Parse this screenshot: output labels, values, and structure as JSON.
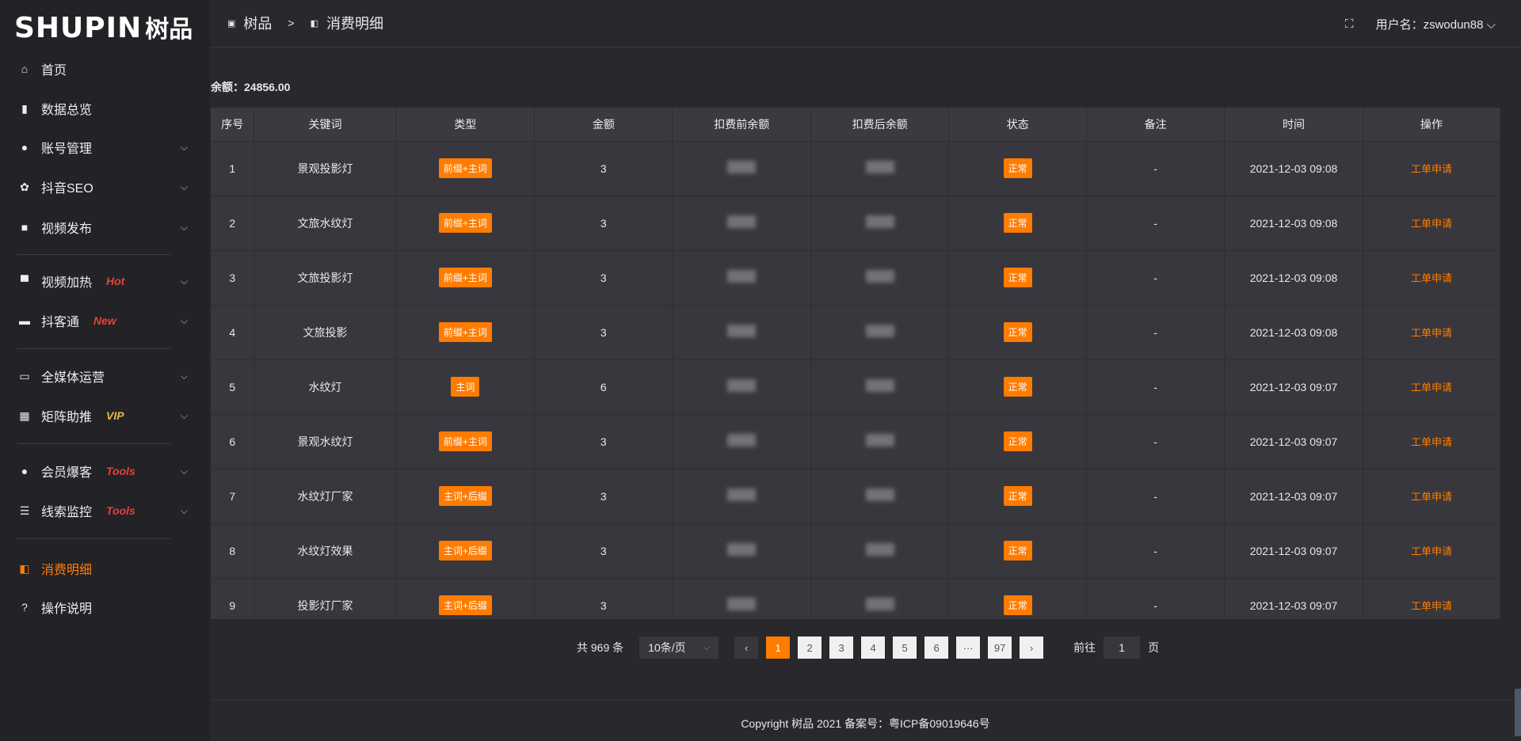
{
  "logo": {
    "en": "SHUPIN",
    "cn": "树品"
  },
  "sidebar": {
    "items": [
      {
        "label": "首页",
        "icon": "home-icon"
      },
      {
        "label": "数据总览",
        "icon": "bar-chart-icon"
      },
      {
        "label": "账号管理",
        "icon": "user-icon",
        "chevron": true
      },
      {
        "label": "抖音SEO",
        "icon": "gear-icon",
        "chevron": true
      },
      {
        "label": "视频发布",
        "icon": "video-icon",
        "chevron": true
      },
      {
        "label": "视频加热",
        "icon": "flag-icon",
        "chevron": true,
        "tag": "Hot",
        "tag_color": "#e8413c"
      },
      {
        "label": "抖客通",
        "icon": "chat-icon",
        "chevron": true,
        "tag": "New",
        "tag_color": "#e8413c"
      },
      {
        "label": "全媒体运营",
        "icon": "monitor-icon",
        "chevron": true
      },
      {
        "label": "矩阵助推",
        "icon": "grid-icon",
        "chevron": true,
        "tag": "VIP",
        "tag_color": "#e9b949"
      },
      {
        "label": "会员爆客",
        "icon": "user-icon",
        "chevron": true,
        "tag": "Tools",
        "tag_color": "#e8413c"
      },
      {
        "label": "线索监控",
        "icon": "sliders-icon",
        "chevron": true,
        "tag": "Tools",
        "tag_color": "#e8413c"
      },
      {
        "label": "消费明细",
        "icon": "wallet-icon",
        "active": true
      },
      {
        "label": "操作说明",
        "icon": "help-icon"
      }
    ]
  },
  "header": {
    "crumb_root": "树品",
    "crumb_sep": ">",
    "crumb_current": "消费明细",
    "username": "用户名：zswodun88"
  },
  "balance": "余额：24856.00",
  "table": {
    "columns": [
      "序号",
      "关键词",
      "类型",
      "金额",
      "扣费前余额",
      "扣费后余额",
      "状态",
      "备注",
      "时间",
      "操作"
    ],
    "rows": [
      {
        "no": "1",
        "keyword": "景观投影灯",
        "type": "前缀+主词",
        "amount": "3",
        "status": "正常",
        "note": "-",
        "time": "2021-12-03 09:08",
        "action": "工单申请"
      },
      {
        "no": "2",
        "keyword": "文旅水纹灯",
        "type": "前缀+主词",
        "amount": "3",
        "status": "正常",
        "note": "-",
        "time": "2021-12-03 09:08",
        "action": "工单申请"
      },
      {
        "no": "3",
        "keyword": "文旅投影灯",
        "type": "前缀+主词",
        "amount": "3",
        "status": "正常",
        "note": "-",
        "time": "2021-12-03 09:08",
        "action": "工单申请"
      },
      {
        "no": "4",
        "keyword": "文旅投影",
        "type": "前缀+主词",
        "amount": "3",
        "status": "正常",
        "note": "-",
        "time": "2021-12-03 09:08",
        "action": "工单申请"
      },
      {
        "no": "5",
        "keyword": "水纹灯",
        "type": "主词",
        "amount": "6",
        "status": "正常",
        "note": "-",
        "time": "2021-12-03 09:07",
        "action": "工单申请"
      },
      {
        "no": "6",
        "keyword": "景观水纹灯",
        "type": "前缀+主词",
        "amount": "3",
        "status": "正常",
        "note": "-",
        "time": "2021-12-03 09:07",
        "action": "工单申请"
      },
      {
        "no": "7",
        "keyword": "水纹灯厂家",
        "type": "主词+后缀",
        "amount": "3",
        "status": "正常",
        "note": "-",
        "time": "2021-12-03 09:07",
        "action": "工单申请"
      },
      {
        "no": "8",
        "keyword": "水纹灯效果",
        "type": "主词+后缀",
        "amount": "3",
        "status": "正常",
        "note": "-",
        "time": "2021-12-03 09:07",
        "action": "工单申请"
      },
      {
        "no": "9",
        "keyword": "投影灯厂家",
        "type": "主词+后缀",
        "amount": "3",
        "status": "正常",
        "note": "-",
        "time": "2021-12-03 09:07",
        "action": "工单申请"
      }
    ]
  },
  "pagination": {
    "total": "共 969 条",
    "page_size": "10条/页",
    "pages": [
      "1",
      "2",
      "3",
      "4",
      "5",
      "6",
      "···",
      "97"
    ],
    "current": "1",
    "goto_label": "前往",
    "goto_value": "1",
    "goto_suffix": "页"
  },
  "footer": "Copyright 树品 2021 备案号：粤ICP备09019646号",
  "colors": {
    "accent": "#ff7c00",
    "background": "#29282c",
    "sidebar": "#232226"
  }
}
